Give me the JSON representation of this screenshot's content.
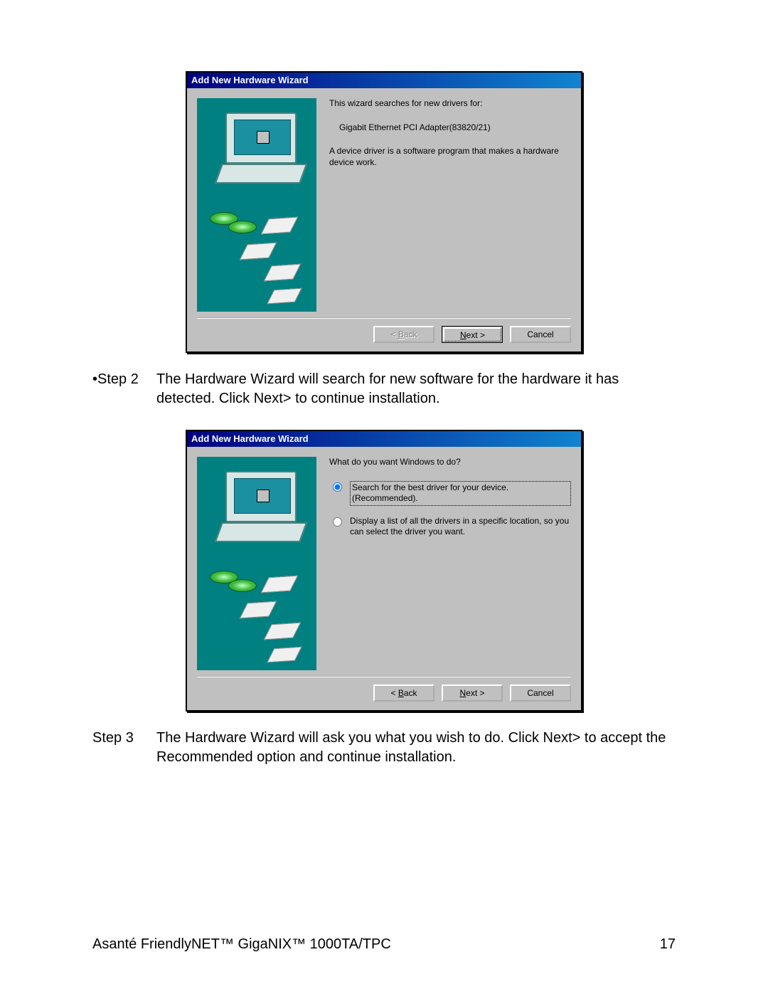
{
  "colors": {
    "dialog_bg": "#c0c0c0",
    "titlebar_start": "#000080",
    "titlebar_end": "#1084d0",
    "sidebar_bg": "#008080",
    "page_bg": "#ffffff",
    "text": "#000000",
    "disabled_text": "#808080"
  },
  "dialog1": {
    "title": "Add New Hardware Wizard",
    "line1": "This wizard searches for new drivers for:",
    "device": "Gigabit Ethernet PCI Adapter(83820/21)",
    "line2": "A device driver is a software program that makes a hardware device work.",
    "back_label": "< Back",
    "back_underline_char": "B",
    "next_label": "Next >",
    "next_underline_char": "N",
    "cancel_label": "Cancel",
    "back_enabled": false,
    "next_default": true
  },
  "step2": {
    "label": "•Step 2",
    "text": "The Hardware Wizard will search for new software for the hardware it has detected.  Click Next> to continue installation."
  },
  "dialog2": {
    "title": "Add New Hardware Wizard",
    "prompt": "What do you want Windows to do?",
    "option1": "Search for the best driver for your device. (Recommended).",
    "option2": "Display a list of all the drivers in a specific location, so you can select the driver you want.",
    "selected_index": 0,
    "back_label": "< Back",
    "back_underline_char": "B",
    "next_label": "Next >",
    "next_underline_char": "N",
    "cancel_label": "Cancel",
    "back_enabled": true,
    "next_default": false
  },
  "step3": {
    "label": "Step 3",
    "text": "The Hardware Wizard will ask you what you wish to do.  Click Next> to accept  the Recommended option and continue installation."
  },
  "footer": {
    "product": "Asanté FriendlyNET™ GigaNIX™ 1000TA/TPC",
    "page": "17"
  }
}
